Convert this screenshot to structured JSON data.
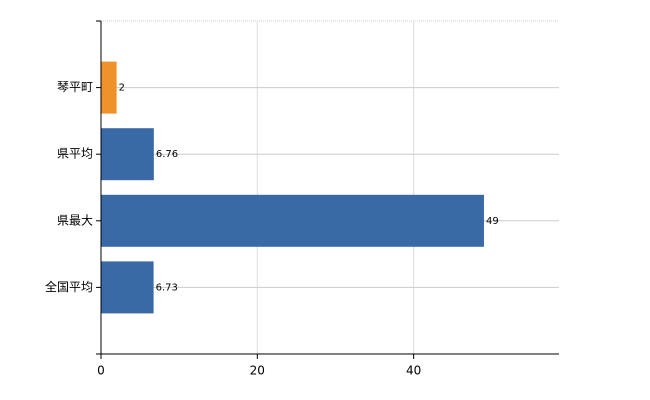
{
  "chart_data": {
    "type": "hbar",
    "categories": [
      "琴平町",
      "県平均",
      "県最大",
      "全国平均"
    ],
    "values": [
      2,
      6.76,
      49,
      6.73
    ],
    "colors": [
      "#f0922b",
      "#3a6aa5",
      "#3a6aa5",
      "#3a6aa5"
    ],
    "xlim": [
      0,
      58.6
    ],
    "xticks": [
      0,
      20,
      40
    ],
    "grid": true
  }
}
